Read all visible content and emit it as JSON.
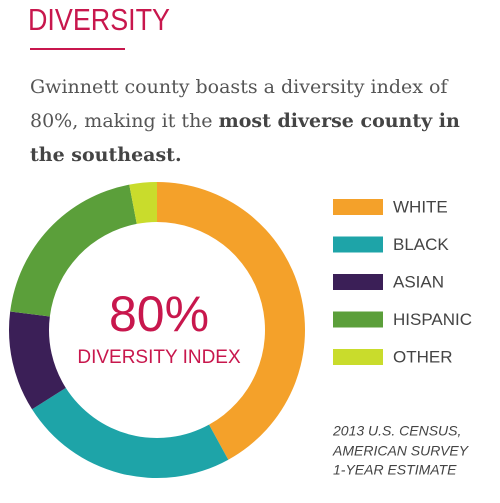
{
  "chart_data": {
    "type": "donut",
    "title": "DIVERSITY",
    "description": {
      "text": "Gwinnett county boasts a diversity index of 80%, making it the ",
      "emphasis": "most diverse county in the southeast."
    },
    "annotations": [
      "80%",
      "DIVERSITY INDEX"
    ],
    "note": [
      "2013 U.S. CENSUS,",
      "AMERICAN SURVEY",
      "1-YEAR ESTIMATE"
    ],
    "categories": [
      "WHITE",
      "BLACK",
      "ASIAN",
      "HISPANIC",
      "OTHER"
    ],
    "values": [
      42,
      24,
      11,
      20,
      3
    ],
    "colors": [
      "#f4a12a",
      "#1ea4a8",
      "#3b1f57",
      "#5b9f3a",
      "#c9dc2c"
    ]
  }
}
